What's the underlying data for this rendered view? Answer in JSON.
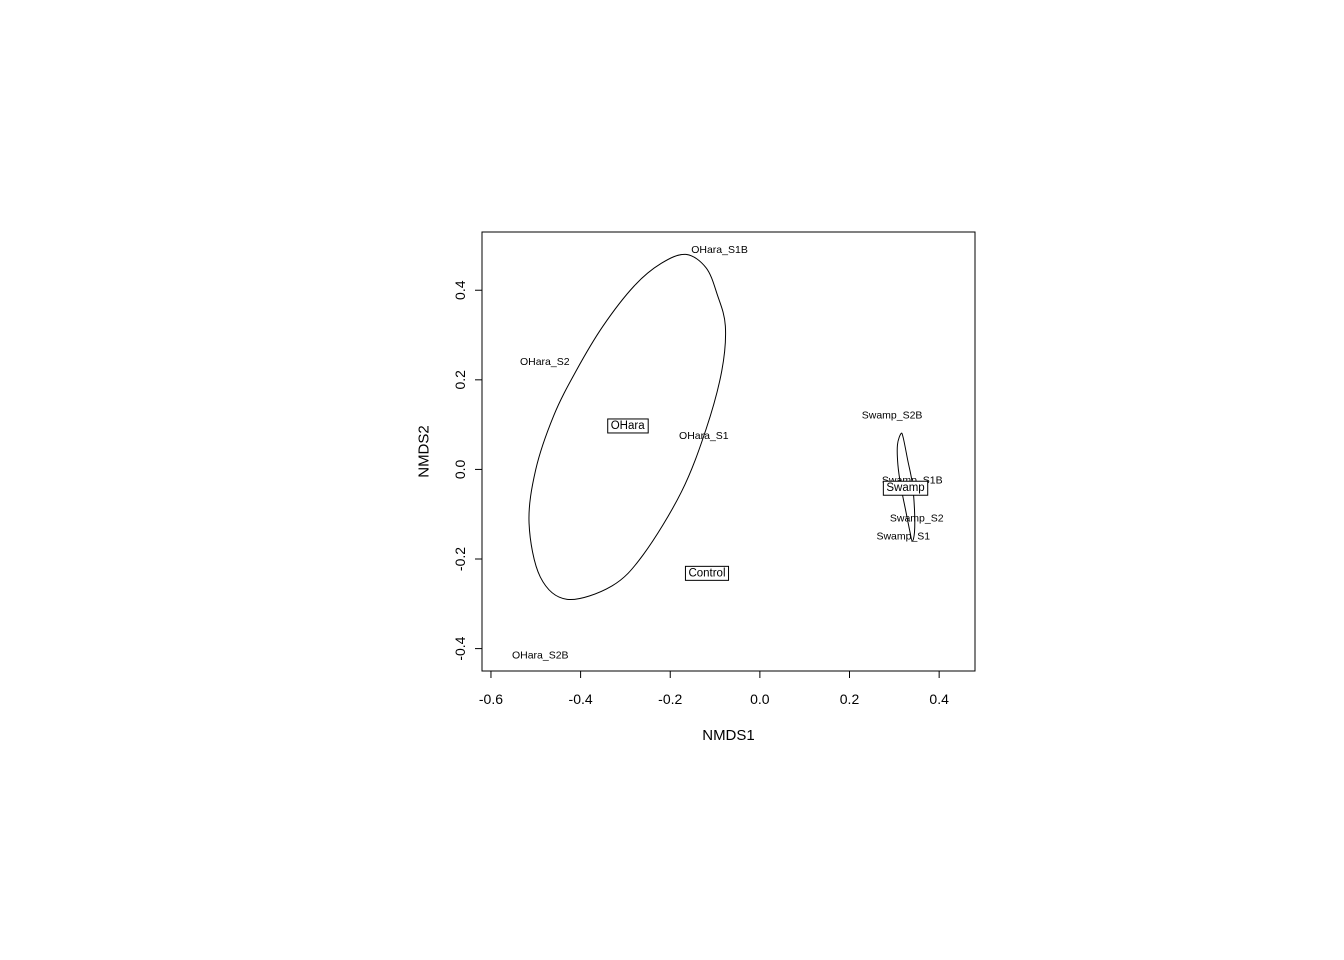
{
  "chart_data": {
    "type": "scatter",
    "title": "",
    "xlabel": "NMDS1",
    "ylabel": "NMDS2",
    "xlim": [
      -0.62,
      0.48
    ],
    "ylim": [
      -0.45,
      0.53
    ],
    "x_ticks": [
      -0.6,
      -0.4,
      -0.2,
      0.0,
      0.2,
      0.4
    ],
    "y_ticks": [
      -0.4,
      -0.2,
      0.0,
      0.2,
      0.4
    ],
    "x_tick_labels": [
      "-0.6",
      "-0.4",
      "-0.2",
      "0.0",
      "0.2",
      "0.4"
    ],
    "y_tick_labels": [
      "-0.4",
      "-0.2",
      "0.0",
      "0.2",
      "0.4"
    ],
    "grid": false,
    "points": [
      {
        "label": "OHara_S1B",
        "x": -0.09,
        "y": 0.49
      },
      {
        "label": "OHara_S2",
        "x": -0.48,
        "y": 0.24
      },
      {
        "label": "OHara_S1",
        "x": -0.125,
        "y": 0.075
      },
      {
        "label": "OHara_S2B",
        "x": -0.49,
        "y": -0.415
      },
      {
        "label": "Control",
        "x": -0.12,
        "y": -0.23
      },
      {
        "label": "Swamp_S2B",
        "x": 0.295,
        "y": 0.12
      },
      {
        "label": "Swamp_S1B",
        "x": 0.34,
        "y": -0.025
      },
      {
        "label": "Swamp_S2",
        "x": 0.35,
        "y": -0.11
      },
      {
        "label": "Swamp_S1",
        "x": 0.32,
        "y": -0.15
      }
    ],
    "group_labels": [
      {
        "label": "OHara",
        "x": -0.295,
        "y": 0.097
      },
      {
        "label": "Control",
        "x": -0.118,
        "y": -0.232
      },
      {
        "label": "Swamp",
        "x": 0.325,
        "y": -0.042
      }
    ],
    "ellipses": [
      {
        "group": "OHara",
        "points": [
          [
            -0.165,
            0.48
          ],
          [
            -0.12,
            0.45
          ],
          [
            -0.095,
            0.39
          ],
          [
            -0.077,
            0.32
          ],
          [
            -0.085,
            0.22
          ],
          [
            -0.12,
            0.09
          ],
          [
            -0.175,
            -0.05
          ],
          [
            -0.26,
            -0.19
          ],
          [
            -0.33,
            -0.26
          ],
          [
            -0.43,
            -0.29
          ],
          [
            -0.49,
            -0.24
          ],
          [
            -0.515,
            -0.12
          ],
          [
            -0.5,
            0.0
          ],
          [
            -0.46,
            0.12
          ],
          [
            -0.41,
            0.22
          ],
          [
            -0.35,
            0.32
          ],
          [
            -0.28,
            0.41
          ],
          [
            -0.22,
            0.46
          ]
        ]
      },
      {
        "group": "Swamp",
        "points": [
          [
            0.315,
            0.08
          ],
          [
            0.32,
            0.07
          ],
          [
            0.33,
            0.02
          ],
          [
            0.34,
            -0.03
          ],
          [
            0.345,
            -0.09
          ],
          [
            0.345,
            -0.14
          ],
          [
            0.34,
            -0.16
          ],
          [
            0.335,
            -0.14
          ],
          [
            0.325,
            -0.09
          ],
          [
            0.315,
            -0.04
          ],
          [
            0.308,
            0.01
          ],
          [
            0.307,
            0.055
          ]
        ]
      }
    ]
  }
}
